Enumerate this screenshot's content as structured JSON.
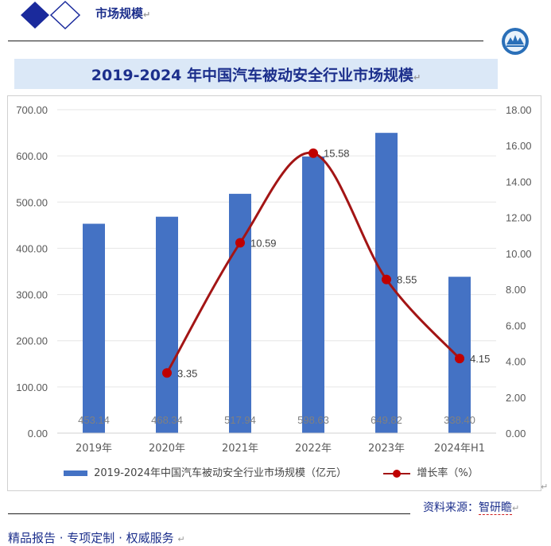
{
  "header": {
    "title": "市场规模"
  },
  "chart_title": "2019-2024 年中国汽车被动安全行业市场规模",
  "legend": {
    "bar_label": "2019-2024年中国汽车被动安全行业市场规模（亿元）",
    "line_label": "增长率（%）"
  },
  "footer": {
    "source_label": "资料来源：",
    "source_value": "智研瞻",
    "slogan": "精品报告 · 专项定制 · 权威服务"
  },
  "colors": {
    "bar": "#4472c4",
    "line": "#a31515",
    "marker": "#c00000",
    "title": "#1c2f8c"
  },
  "chart_data": {
    "type": "bar",
    "title": "2019-2024 年中国汽车被动安全行业市场规模",
    "categories": [
      "2019年",
      "2020年",
      "2021年",
      "2022年",
      "2023年",
      "2024年H1"
    ],
    "series": [
      {
        "name": "2019-2024年中国汽车被动安全行业市场规模（亿元）",
        "type": "bar",
        "axis": "left",
        "values": [
          453.14,
          468.34,
          517.94,
          598.63,
          649.82,
          338.4
        ],
        "labels": [
          "453.14",
          "468.34",
          "517.94",
          "598.63",
          "649.82",
          "338.40"
        ]
      },
      {
        "name": "增长率（%）",
        "type": "line",
        "axis": "right",
        "values": [
          null,
          3.35,
          10.59,
          15.58,
          8.55,
          4.15
        ],
        "labels": [
          "",
          "3.35",
          "10.59",
          "15.58",
          "8.55",
          "4.15"
        ]
      }
    ],
    "y_left": {
      "min": 0,
      "max": 700,
      "ticks": [
        "0.00",
        "100.00",
        "200.00",
        "300.00",
        "400.00",
        "500.00",
        "600.00",
        "700.00"
      ]
    },
    "y_right": {
      "min": 0,
      "max": 18,
      "ticks": [
        "0.00",
        "2.00",
        "4.00",
        "6.00",
        "8.00",
        "10.00",
        "12.00",
        "14.00",
        "16.00",
        "18.00"
      ]
    },
    "legend_position": "bottom"
  }
}
